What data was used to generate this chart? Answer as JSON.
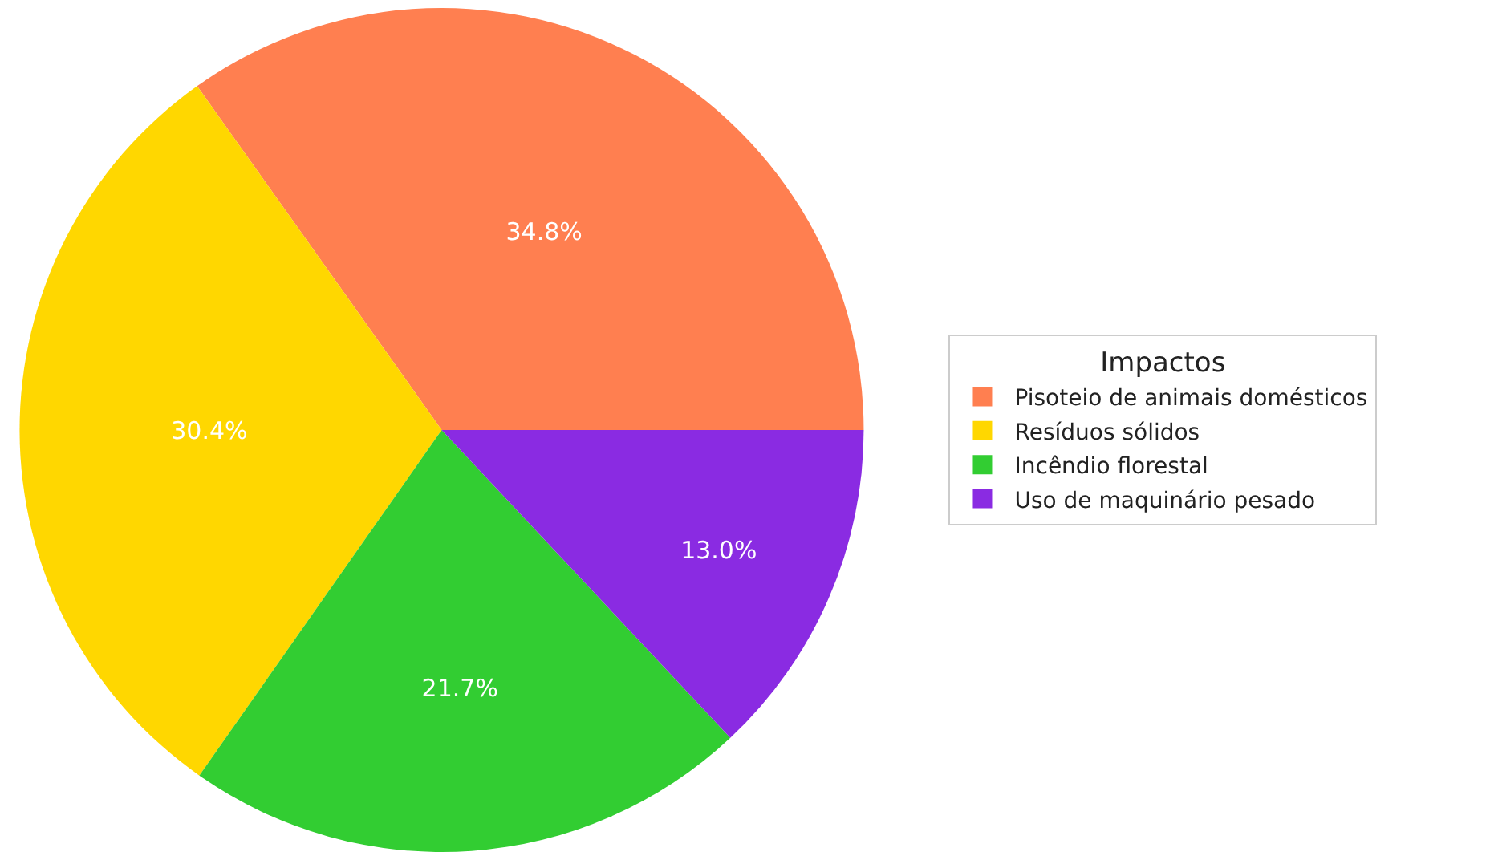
{
  "chart_data": {
    "type": "pie",
    "legend_title": "Impactos",
    "legend": "right",
    "categories": [
      "Pisoteio de animais domésticos",
      "Resíduos sólidos",
      "Incêndio florestal",
      "Uso de maquinário pesado"
    ],
    "values": [
      34.8,
      30.4,
      21.7,
      13.0
    ],
    "value_labels": [
      "34.8%",
      "30.4%",
      "21.7%",
      "13.0%"
    ],
    "colors": [
      "#ff7f50",
      "#ffd700",
      "#32cd32",
      "#8a2be2"
    ]
  }
}
